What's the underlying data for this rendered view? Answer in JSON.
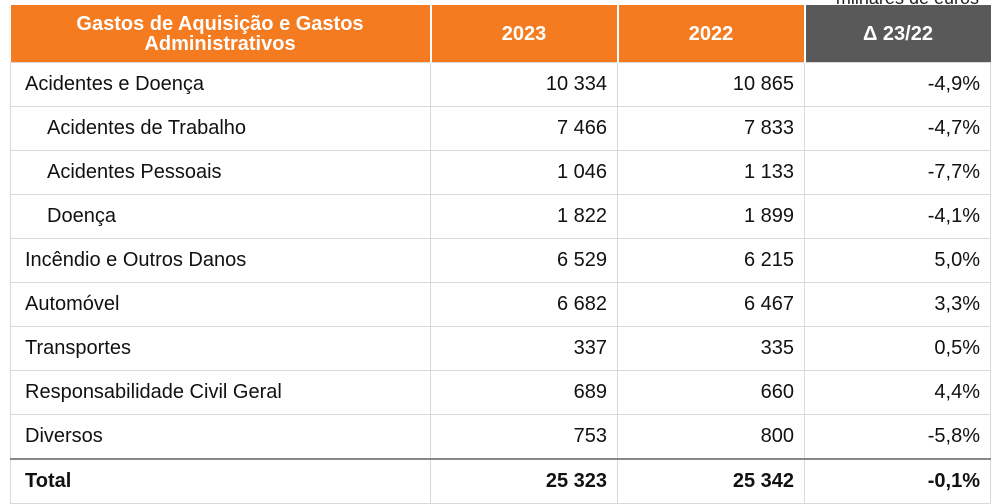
{
  "unit_note": "milhares de euros",
  "table": {
    "header": [
      "Gastos de Aquisição e Gastos Administrativos",
      "2023",
      "2022",
      "Δ 23/22"
    ],
    "rows": [
      [
        "Acidentes e Doença",
        "10 334",
        "10 865",
        "-4,9%"
      ],
      [
        "Acidentes de Trabalho",
        "7 466",
        "7 833",
        "-4,7%"
      ],
      [
        "Acidentes Pessoais",
        "1 046",
        "1 133",
        "-7,7%"
      ],
      [
        "Doença",
        "1 822",
        "1 899",
        "-4,1%"
      ],
      [
        "Incêndio e Outros Danos",
        "6 529",
        "6 215",
        "5,0%"
      ],
      [
        "Automóvel",
        "6 682",
        "6 467",
        "3,3%"
      ],
      [
        "Transportes",
        "337",
        "335",
        "0,5%"
      ],
      [
        "Responsabilidade Civil Geral",
        "689",
        "660",
        "4,4%"
      ],
      [
        "Diversos",
        "753",
        "800",
        "-5,8%"
      ],
      [
        "Total",
        "25 323",
        "25 342",
        "-0,1%"
      ]
    ]
  }
}
